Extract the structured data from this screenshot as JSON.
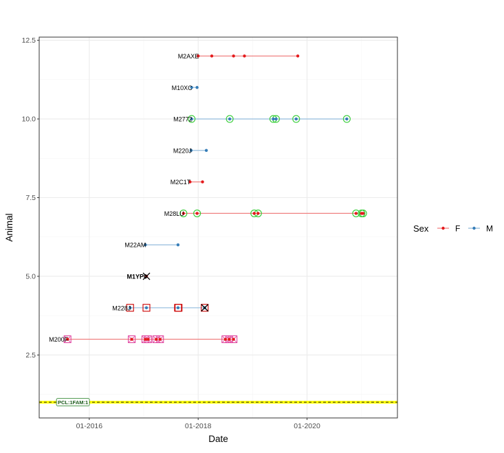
{
  "chart_data": {
    "type": "scatter",
    "title": "",
    "xlabel": "Date",
    "ylabel": "Animal",
    "xlim": [
      2015.08,
      2021.66
    ],
    "ylim": [
      0.5,
      12.6
    ],
    "x_ticks": [
      2016,
      2018,
      2020
    ],
    "x_tick_labels": [
      "01-2016",
      "01-2018",
      "01-2020"
    ],
    "y_ticks": [
      2.5,
      5.0,
      7.5,
      10.0,
      12.5
    ],
    "y_tick_labels": [
      "2.5",
      "5.0",
      "7.5",
      "10.0",
      "12.5"
    ],
    "legend": {
      "title": "Sex",
      "position": "right",
      "entries": [
        {
          "label": "F",
          "color": "#e41a1c"
        },
        {
          "label": "M",
          "color": "#377eb8"
        }
      ]
    },
    "colors": {
      "F": "#e41a1c",
      "M": "#377eb8",
      "F_line": "#f08080",
      "M_line": "#9ec2e0",
      "circle_marker": "#33cc33",
      "square_marker": "#cc0000",
      "pink_marker": "#dd3497",
      "death_marker": "#000000",
      "ref_line_fill": "#ffff00",
      "ref_label_border": "#1a7a1a",
      "ref_label_text": "#1a5a1a",
      "grid_major": "#ebebeb",
      "grid_minor": "#f5f5f5",
      "panel_border": "#333333"
    },
    "reference_line": {
      "y": 1.0,
      "label": "PCL:1FAM:1",
      "label_x": 2015.7
    },
    "series": [
      {
        "name": "M2AXE",
        "y": 12,
        "sex": "F",
        "first": 2018.0,
        "last": 2019.83,
        "points": [
          2018.0,
          2018.25,
          2018.65,
          2018.85,
          2019.83
        ],
        "circles": [],
        "squares": [],
        "pinks": [],
        "death": null
      },
      {
        "name": "M10XC",
        "y": 11,
        "sex": "M",
        "first": 2017.88,
        "last": 2017.98,
        "points": [
          2017.88,
          2017.98
        ],
        "circles": [],
        "squares": [],
        "pinks": [],
        "death": null
      },
      {
        "name": "M2772",
        "y": 10,
        "sex": "M",
        "first": 2017.88,
        "last": 2020.73,
        "points": [
          2017.88,
          2018.58,
          2019.38,
          2019.43,
          2019.8,
          2020.73
        ],
        "circles": [
          2017.88,
          2018.58,
          2019.38,
          2019.43,
          2019.8,
          2020.73
        ],
        "squares": [],
        "pinks": [],
        "death": null
      },
      {
        "name": "M220J",
        "y": 9,
        "sex": "M",
        "first": 2017.87,
        "last": 2018.15,
        "points": [
          2017.87,
          2018.15
        ],
        "circles": [],
        "squares": [],
        "pinks": [],
        "death": null
      },
      {
        "name": "M2C1T",
        "y": 8,
        "sex": "F",
        "first": 2017.85,
        "last": 2018.08,
        "points": [
          2017.85,
          2018.08
        ],
        "circles": [],
        "squares": [],
        "pinks": [],
        "death": null
      },
      {
        "name": "M28LU",
        "y": 7,
        "sex": "F",
        "first": 2017.73,
        "last": 2021.03,
        "points": [
          2017.73,
          2017.98,
          2019.03,
          2019.1,
          2020.9,
          2021.0,
          2021.03
        ],
        "circles": [
          2017.73,
          2017.98,
          2019.03,
          2019.1,
          2020.9,
          2021.0,
          2021.03
        ],
        "squares": [],
        "pinks": [],
        "death": null
      },
      {
        "name": "M22AM",
        "y": 6,
        "sex": "M",
        "first": 2017.03,
        "last": 2017.63,
        "points": [
          2017.03,
          2017.63
        ],
        "circles": [],
        "squares": [],
        "pinks": [],
        "death": null
      },
      {
        "name": "M1YP0",
        "y": 5,
        "sex": "F",
        "first": 2017.05,
        "last": 2017.05,
        "points": [
          2017.05
        ],
        "circles": [],
        "squares": [],
        "pinks": [],
        "death": 2017.05
      },
      {
        "name": "M228J",
        "y": 4,
        "sex": "M",
        "first": 2016.75,
        "last": 2018.12,
        "points": [
          2016.75,
          2017.05,
          2017.63,
          2018.12
        ],
        "circles": [],
        "squares": [
          2016.75,
          2017.05,
          2017.63,
          2017.64,
          2018.12
        ],
        "pinks": [],
        "death": 2018.12
      },
      {
        "name": "M200F",
        "y": 3,
        "sex": "F",
        "first": 2015.6,
        "last": 2018.65,
        "points": [
          2015.6,
          2016.78,
          2017.03,
          2017.08,
          2017.23,
          2017.3,
          2018.5,
          2018.57,
          2018.65
        ],
        "circles": [],
        "squares": [],
        "pinks": [
          2015.6,
          2016.78,
          2017.03,
          2017.08,
          2017.23,
          2017.3,
          2018.5,
          2018.57,
          2018.65
        ],
        "death": null
      }
    ]
  }
}
